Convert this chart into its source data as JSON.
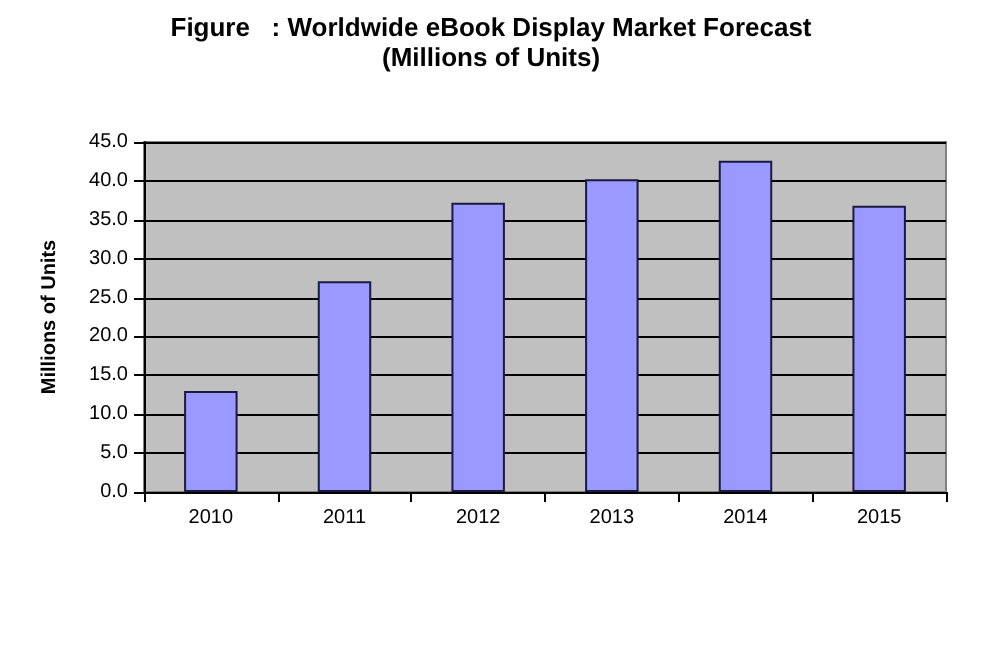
{
  "chart_data": {
    "type": "bar",
    "title": "Figure   : Worldwide eBook Display Market Forecast",
    "subtitle": "(Millions of Units)",
    "ylabel": "Millions of Units",
    "categories": [
      "2010",
      "2011",
      "2012",
      "2013",
      "2014",
      "2015"
    ],
    "values": [
      13.0,
      27.1,
      37.2,
      40.2,
      42.6,
      36.8
    ],
    "color": "#9999ff",
    "ylim": [
      0,
      45
    ],
    "yticks": [
      {
        "value": 0,
        "label": "0.0"
      },
      {
        "value": 5,
        "label": "5.0"
      },
      {
        "value": 10,
        "label": "10.0"
      },
      {
        "value": 15,
        "label": "15.0"
      },
      {
        "value": 20,
        "label": "20.0"
      },
      {
        "value": 25,
        "label": "25.0"
      },
      {
        "value": 30,
        "label": "30.0"
      },
      {
        "value": 35,
        "label": "35.0"
      },
      {
        "value": 40,
        "label": "40.0"
      },
      {
        "value": 45,
        "label": "45.0"
      }
    ],
    "grid": "y"
  }
}
